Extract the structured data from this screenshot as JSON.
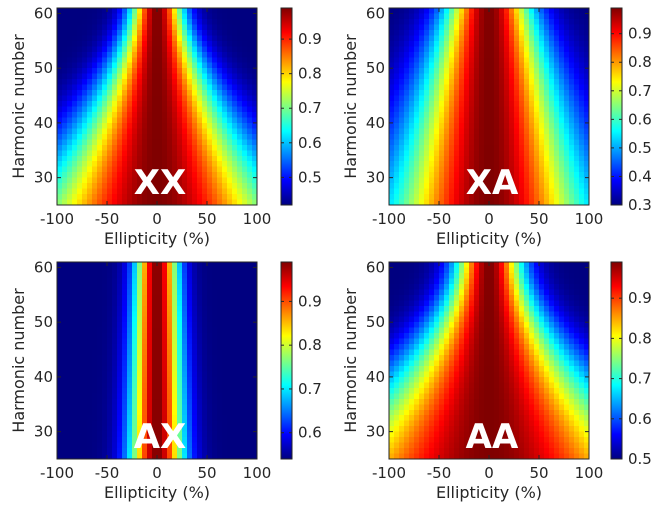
{
  "chart_data": [
    {
      "type": "heatmap",
      "label": "XX",
      "xlabel": "Ellipticity (%)",
      "ylabel": "Harmonic number",
      "xlim": [
        -100,
        100
      ],
      "ylim": [
        25,
        61
      ],
      "x_ticks": [
        -100,
        -50,
        0,
        50,
        100
      ],
      "y_ticks": [
        30,
        40,
        50,
        60
      ],
      "colorbar": {
        "ticks": [
          0.5,
          0.6,
          0.7,
          0.8,
          0.9
        ],
        "range": [
          0.42,
          0.99
        ]
      },
      "value_samples": [
        {
          "harmonic": 25,
          "ellipticity": 0,
          "value": 0.99
        },
        {
          "harmonic": 25,
          "ellipticity": 100,
          "value": 0.86
        },
        {
          "harmonic": 40,
          "ellipticity": 0,
          "value": 0.99
        },
        {
          "harmonic": 40,
          "ellipticity": 100,
          "value": 0.68
        },
        {
          "harmonic": 60,
          "ellipticity": 0,
          "value": 0.99
        },
        {
          "harmonic": 60,
          "ellipticity": 100,
          "value": 0.43
        }
      ]
    },
    {
      "type": "heatmap",
      "label": "XA",
      "xlabel": "Ellipticity (%)",
      "ylabel": "Harmonic number",
      "xlim": [
        -100,
        100
      ],
      "ylim": [
        25,
        61
      ],
      "x_ticks": [
        -100,
        -50,
        0,
        50,
        100
      ],
      "y_ticks": [
        30,
        40,
        50,
        60
      ],
      "colorbar": {
        "ticks": [
          0.3,
          0.4,
          0.5,
          0.6,
          0.7,
          0.8,
          0.9
        ],
        "range": [
          0.3,
          0.99
        ]
      },
      "value_samples": [
        {
          "harmonic": 25,
          "ellipticity": 0,
          "value": 0.99
        },
        {
          "harmonic": 25,
          "ellipticity": 100,
          "value": 0.65
        },
        {
          "harmonic": 40,
          "ellipticity": 0,
          "value": 0.99
        },
        {
          "harmonic": 40,
          "ellipticity": 100,
          "value": 0.5
        },
        {
          "harmonic": 60,
          "ellipticity": 0,
          "value": 0.99
        },
        {
          "harmonic": 60,
          "ellipticity": 100,
          "value": 0.3
        }
      ]
    },
    {
      "type": "heatmap",
      "label": "AX",
      "xlabel": "Ellipticity (%)",
      "ylabel": "Harmonic number",
      "xlim": [
        -100,
        100
      ],
      "ylim": [
        25,
        61
      ],
      "x_ticks": [
        -100,
        -50,
        0,
        50,
        100
      ],
      "y_ticks": [
        30,
        40,
        50,
        60
      ],
      "colorbar": {
        "ticks": [
          0.6,
          0.7,
          0.8,
          0.9
        ],
        "range": [
          0.54,
          0.99
        ]
      },
      "value_samples": [
        {
          "harmonic": 25,
          "ellipticity": 0,
          "value": 0.99
        },
        {
          "harmonic": 25,
          "ellipticity": 100,
          "value": 0.55
        },
        {
          "harmonic": 40,
          "ellipticity": 0,
          "value": 0.99
        },
        {
          "harmonic": 40,
          "ellipticity": 100,
          "value": 0.58
        },
        {
          "harmonic": 60,
          "ellipticity": 0,
          "value": 0.99
        },
        {
          "harmonic": 60,
          "ellipticity": 100,
          "value": 0.6
        }
      ]
    },
    {
      "type": "heatmap",
      "label": "AA",
      "xlabel": "Ellipticity (%)",
      "ylabel": "Harmonic number",
      "xlim": [
        -100,
        100
      ],
      "ylim": [
        25,
        61
      ],
      "x_ticks": [
        -100,
        -50,
        0,
        50,
        100
      ],
      "y_ticks": [
        30,
        40,
        50,
        60
      ],
      "colorbar": {
        "ticks": [
          0.5,
          0.6,
          0.7,
          0.8,
          0.9
        ],
        "range": [
          0.5,
          0.99
        ]
      },
      "value_samples": [
        {
          "harmonic": 25,
          "ellipticity": 0,
          "value": 0.99
        },
        {
          "harmonic": 25,
          "ellipticity": 100,
          "value": 0.9
        },
        {
          "harmonic": 40,
          "ellipticity": 0,
          "value": 0.99
        },
        {
          "harmonic": 40,
          "ellipticity": 100,
          "value": 0.78
        },
        {
          "harmonic": 60,
          "ellipticity": 0,
          "value": 0.99
        },
        {
          "harmonic": 60,
          "ellipticity": 100,
          "value": 0.52
        }
      ]
    }
  ]
}
